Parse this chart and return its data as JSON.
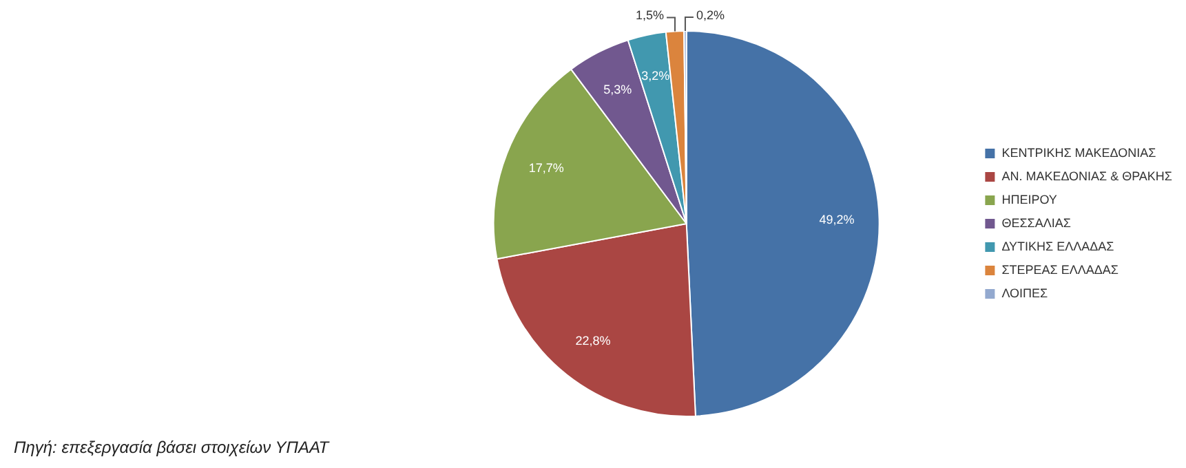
{
  "chart_data": {
    "type": "pie",
    "categories": [
      "ΚΕΝΤΡΙΚΗΣ ΜΑΚΕΔΟΝΙΑΣ",
      "ΑΝ. ΜΑΚΕΔΟΝΙΑΣ & ΘΡΑΚΗΣ",
      "ΗΠΕΙΡΟΥ",
      "ΘΕΣΣΑΛΙΑΣ",
      "ΔΥΤΙΚΗΣ ΕΛΛΑΔΑΣ",
      "ΣΤΕΡΕΑΣ ΕΛΛΑΔΑΣ",
      "ΛΟΙΠΕΣ"
    ],
    "values": [
      49.2,
      22.8,
      17.7,
      5.3,
      3.2,
      1.5,
      0.2
    ],
    "colors": [
      "#4572a7",
      "#aa4643",
      "#89a54e",
      "#71588f",
      "#4198af",
      "#db843d",
      "#93a9cf"
    ],
    "value_labels": [
      "49,2%",
      "22,8%",
      "17,7%",
      "5,3%",
      "3,2%",
      "1,5%",
      "0,2%"
    ],
    "legend": "right",
    "annotations": [
      "Πηγή: επεξεργασία βάσει στοιχείων ΥΠΑΑΤ"
    ]
  }
}
